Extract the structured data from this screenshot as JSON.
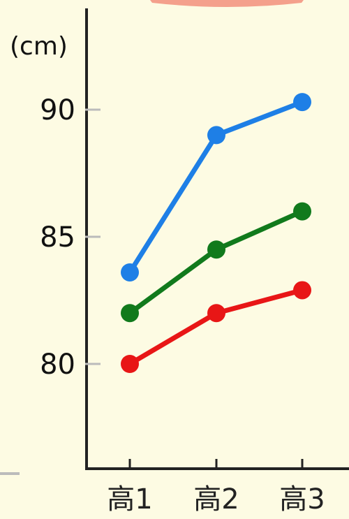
{
  "chart_data": {
    "type": "line",
    "unit_label": "(cm)",
    "categories": [
      "高1",
      "高2",
      "高3"
    ],
    "ylim": [
      75,
      93
    ],
    "yticks": [
      80,
      85,
      90
    ],
    "series": [
      {
        "color": "#1e7fe6",
        "values": [
          83.6,
          89.0,
          90.3
        ]
      },
      {
        "color": "#117a1c",
        "values": [
          82.0,
          84.5,
          86.0
        ]
      },
      {
        "color": "#e81616",
        "values": [
          80.0,
          82.0,
          82.9
        ]
      }
    ],
    "grid": false,
    "legend": "none"
  },
  "colors": {
    "background": "#fdfbe3",
    "axis": "#222222",
    "top_tab": "#f4a08c"
  }
}
